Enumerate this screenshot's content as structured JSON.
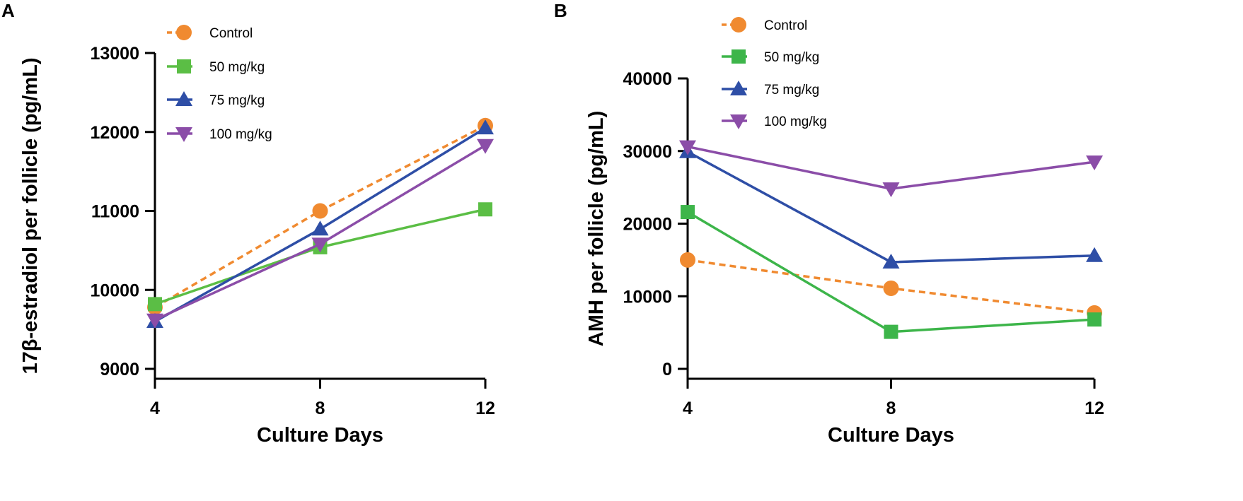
{
  "chart_data": [
    {
      "panel": "A",
      "type": "line",
      "title": "",
      "xlabel": "Culture Days",
      "ylabel": "17β-estradiol per follicle (pg/mL)",
      "categories": [
        4,
        8,
        12
      ],
      "x_ticks": [
        "4",
        "8",
        "12"
      ],
      "y_ticks": [
        "9000",
        "10000",
        "11000",
        "12000",
        "13000"
      ],
      "ylim": [
        9000,
        13000
      ],
      "legend_position": "top-left",
      "series": [
        {
          "name": "Control",
          "color": "#F08A30",
          "marker": "circle",
          "dash": true,
          "values": [
            9780,
            11000,
            12080
          ]
        },
        {
          "name": "50 mg/kg",
          "color": "#5BBE45",
          "marker": "square",
          "dash": false,
          "values": [
            9820,
            10540,
            11020
          ]
        },
        {
          "name": "75 mg/kg",
          "color": "#2E4EA6",
          "marker": "triangle-up",
          "dash": false,
          "values": [
            9600,
            10770,
            12050
          ]
        },
        {
          "name": "100 mg/kg",
          "color": "#8B4DA8",
          "marker": "triangle-down",
          "dash": false,
          "values": [
            9620,
            10580,
            11830
          ]
        }
      ]
    },
    {
      "panel": "B",
      "type": "line",
      "title": "",
      "xlabel": "Culture Days",
      "ylabel": "AMH per follicle (pg/mL)",
      "categories": [
        4,
        8,
        12
      ],
      "x_ticks": [
        "4",
        "8",
        "12"
      ],
      "y_ticks": [
        "0",
        "10000",
        "20000",
        "30000",
        "40000"
      ],
      "ylim": [
        0,
        40000
      ],
      "legend_position": "top-center",
      "series": [
        {
          "name": "Control",
          "color": "#F08A30",
          "marker": "circle",
          "dash": true,
          "values": [
            15000,
            11100,
            7700
          ]
        },
        {
          "name": "50 mg/kg",
          "color": "#3DB54A",
          "marker": "square",
          "dash": false,
          "values": [
            21600,
            5100,
            6800
          ]
        },
        {
          "name": "75 mg/kg",
          "color": "#2E4EA6",
          "marker": "triangle-up",
          "dash": false,
          "values": [
            29900,
            14700,
            15600
          ]
        },
        {
          "name": "100 mg/kg",
          "color": "#8B4DA8",
          "marker": "triangle-down",
          "dash": false,
          "values": [
            30600,
            24800,
            28500
          ]
        }
      ]
    }
  ]
}
